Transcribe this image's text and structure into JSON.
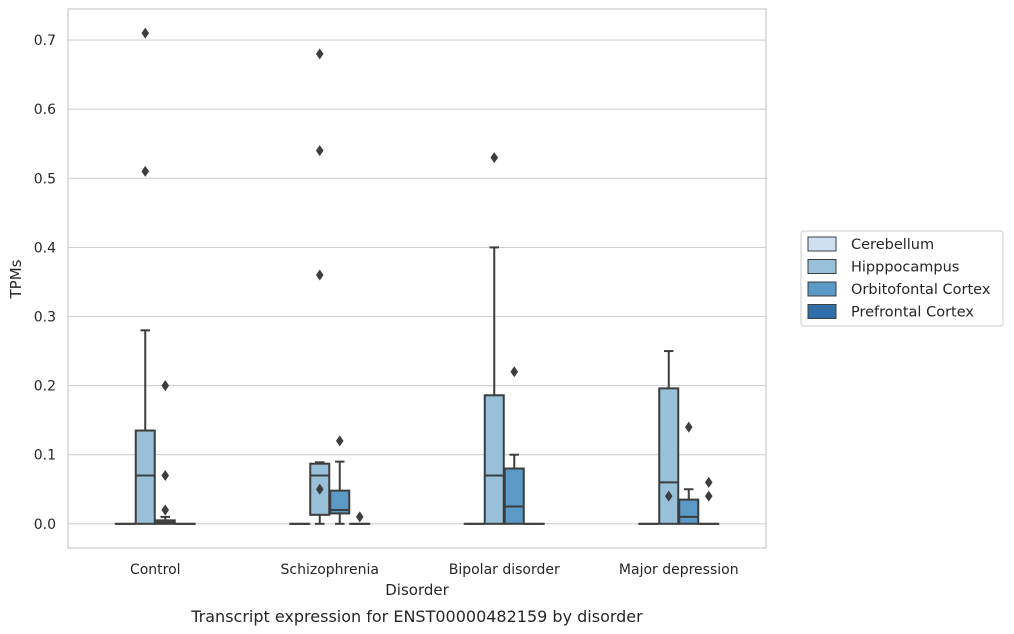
{
  "caption": "Transcript expression for ENST00000482159 by disorder",
  "chart_data": {
    "type": "box",
    "xlabel": "Disorder",
    "ylabel": "TPMs",
    "ylim": [
      -0.035,
      0.745
    ],
    "y_ticks": [
      "0.0",
      "0.1",
      "0.2",
      "0.3",
      "0.4",
      "0.5",
      "0.6",
      "0.7"
    ],
    "y_tick_values": [
      0.0,
      0.1,
      0.2,
      0.3,
      0.4,
      0.5,
      0.6,
      0.7
    ],
    "grid": true,
    "legend_position": "right",
    "categories": [
      "Control",
      "Schizophrenia",
      "Bipolar disorder",
      "Major depression"
    ],
    "series": [
      {
        "name": "Cerebellum",
        "color": "#cfe1f1",
        "boxes": [
          {
            "q1": 0,
            "median": 0,
            "q3": 0,
            "whisker_low": 0,
            "whisker_high": 0,
            "outliers": []
          },
          {
            "q1": 0,
            "median": 0,
            "q3": 0,
            "whisker_low": 0,
            "whisker_high": 0,
            "outliers": []
          },
          {
            "q1": 0,
            "median": 0,
            "q3": 0,
            "whisker_low": 0,
            "whisker_high": 0,
            "outliers": []
          },
          {
            "q1": 0,
            "median": 0,
            "q3": 0,
            "whisker_low": 0,
            "whisker_high": 0,
            "outliers": []
          }
        ]
      },
      {
        "name": "Hipppocampus",
        "color": "#98c1d9",
        "boxes": [
          {
            "q1": 0,
            "median": 0.07,
            "q3": 0.135,
            "whisker_low": 0,
            "whisker_high": 0.28,
            "outliers": [
              0.51,
              0.71
            ]
          },
          {
            "q1": 0.013,
            "median": 0.07,
            "q3": 0.087,
            "whisker_low": 0,
            "whisker_high": 0.089,
            "outliers": [
              0.05,
              0.36,
              0.54,
              0.68
            ]
          },
          {
            "q1": 0,
            "median": 0.07,
            "q3": 0.186,
            "whisker_low": 0,
            "whisker_high": 0.4,
            "outliers": [
              0.53
            ]
          },
          {
            "q1": 0,
            "median": 0.06,
            "q3": 0.196,
            "whisker_low": 0,
            "whisker_high": 0.25,
            "outliers": [
              0.04
            ]
          }
        ]
      },
      {
        "name": "Orbitofontal Cortex",
        "color": "#5b99c6",
        "boxes": [
          {
            "q1": 0,
            "median": 0.002,
            "q3": 0.005,
            "whisker_low": 0,
            "whisker_high": 0.01,
            "outliers": [
              0.02,
              0.07,
              0.2
            ]
          },
          {
            "q1": 0.015,
            "median": 0.02,
            "q3": 0.048,
            "whisker_low": 0,
            "whisker_high": 0.09,
            "outliers": [
              0.12
            ]
          },
          {
            "q1": 0,
            "median": 0.025,
            "q3": 0.08,
            "whisker_low": 0,
            "whisker_high": 0.1,
            "outliers": [
              0.22
            ]
          },
          {
            "q1": 0,
            "median": 0.01,
            "q3": 0.035,
            "whisker_low": 0,
            "whisker_high": 0.05,
            "outliers": [
              0.14
            ]
          }
        ]
      },
      {
        "name": "Prefrontal Cortex",
        "color": "#2f6ea8",
        "boxes": [
          {
            "q1": 0,
            "median": 0,
            "q3": 0,
            "whisker_low": 0,
            "whisker_high": 0,
            "outliers": []
          },
          {
            "q1": 0,
            "median": 0,
            "q3": 0,
            "whisker_low": 0,
            "whisker_high": 0,
            "outliers": [
              0.01
            ]
          },
          {
            "q1": 0,
            "median": 0,
            "q3": 0,
            "whisker_low": 0,
            "whisker_high": 0,
            "outliers": []
          },
          {
            "q1": 0,
            "median": 0,
            "q3": 0,
            "whisker_low": 0,
            "whisker_high": 0,
            "outliers": [
              0.04,
              0.06
            ]
          }
        ]
      }
    ]
  }
}
